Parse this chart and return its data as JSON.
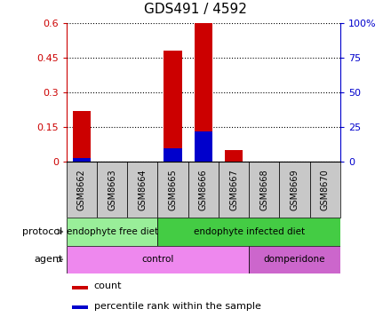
{
  "title": "GDS491 / 4592",
  "samples": [
    "GSM8662",
    "GSM8663",
    "GSM8664",
    "GSM8665",
    "GSM8666",
    "GSM8667",
    "GSM8668",
    "GSM8669",
    "GSM8670"
  ],
  "count_values": [
    0.22,
    0.0,
    0.0,
    0.48,
    0.6,
    0.05,
    0.0,
    0.0,
    0.0
  ],
  "percentile_values": [
    3.0,
    0.0,
    0.0,
    10.0,
    22.0,
    0.0,
    0.0,
    0.0,
    0.0
  ],
  "ylim_left": [
    0,
    0.6
  ],
  "ylim_right": [
    0,
    100
  ],
  "yticks_left": [
    0,
    0.15,
    0.3,
    0.45,
    0.6
  ],
  "ytick_labels_left": [
    "0",
    "0.15",
    "0.3",
    "0.45",
    "0.6"
  ],
  "yticks_right": [
    0,
    25,
    50,
    75,
    100
  ],
  "ytick_labels_right": [
    "0",
    "25",
    "50",
    "75",
    "100%"
  ],
  "bar_color": "#cc0000",
  "percentile_color": "#0000cc",
  "bar_width": 0.6,
  "protocol_groups": [
    {
      "label": "endophyte free diet",
      "start": 0,
      "end": 3,
      "color": "#99ee99"
    },
    {
      "label": "endophyte infected diet",
      "start": 3,
      "end": 9,
      "color": "#44cc44"
    }
  ],
  "agent_groups": [
    {
      "label": "control",
      "start": 0,
      "end": 6,
      "color": "#ee88ee"
    },
    {
      "label": "domperidone",
      "start": 6,
      "end": 9,
      "color": "#cc66cc"
    }
  ],
  "protocol_label": "protocol",
  "agent_label": "agent",
  "legend_count_label": "count",
  "legend_percentile_label": "percentile rank within the sample",
  "background_color": "#ffffff",
  "grid_color": "#000000",
  "label_color_left": "#cc0000",
  "label_color_right": "#0000cc",
  "sample_box_color": "#c8c8c8",
  "fig_width": 4.4,
  "fig_height": 3.66
}
